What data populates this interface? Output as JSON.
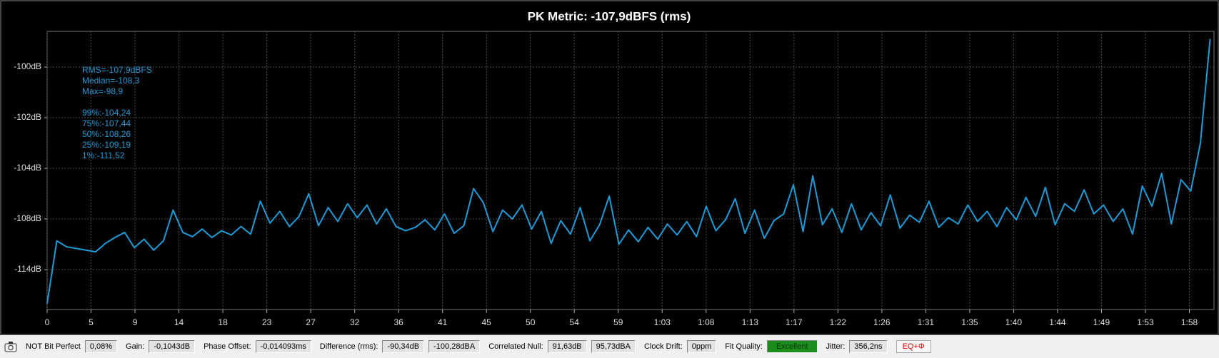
{
  "chart_data": {
    "type": "line",
    "title": "PK Metric: -107,9dBFS (rms)",
    "annotations": {
      "summary": [
        "RMS=-107,9dBFS",
        "Median=-108,3",
        "Max=-98,9"
      ],
      "percentiles": [
        "99%:-104,24",
        "75%:-107,44",
        "50%:-108,26",
        "25%:-109,19",
        "1%:-111,52"
      ]
    },
    "x": [
      0,
      1,
      2,
      3,
      4,
      5,
      6,
      7,
      8,
      9,
      10,
      11,
      12,
      13,
      14,
      15,
      16,
      17,
      18,
      19,
      20,
      21,
      22,
      23,
      24,
      25,
      26,
      27,
      28,
      29,
      30,
      31,
      32,
      33,
      34,
      35,
      36,
      37,
      38,
      39,
      40,
      41,
      42,
      43,
      44,
      45,
      46,
      47,
      48,
      49,
      50,
      51,
      52,
      53,
      54,
      55,
      56,
      57,
      58,
      59,
      60,
      61,
      62,
      63,
      64,
      65,
      66,
      67,
      68,
      69,
      70,
      71,
      72,
      73,
      74,
      75,
      76,
      77,
      78,
      79,
      80,
      81,
      82,
      83,
      84,
      85,
      86,
      87,
      88,
      89,
      90,
      91,
      92,
      93,
      94,
      95,
      96,
      97,
      98,
      99,
      100,
      101,
      102,
      103,
      104,
      105,
      106,
      107,
      108,
      109,
      110,
      111,
      112,
      113,
      114,
      115,
      116,
      117,
      118,
      119,
      120
    ],
    "series": [
      {
        "name": "PK Metric",
        "color": "#1e9bd7",
        "values": [
          -118.0,
          -110.6,
          -111.3,
          -111.5,
          -111.7,
          -111.9,
          -110.9,
          -110.2,
          -109.6,
          -111.4,
          -110.4,
          -111.7,
          -110.6,
          -107.3,
          -109.6,
          -110.1,
          -109.2,
          -110.2,
          -109.4,
          -109.9,
          -108.9,
          -109.8,
          -106.6,
          -108.5,
          -107.4,
          -108.9,
          -107.8,
          -106.0,
          -108.8,
          -107.1,
          -108.3,
          -106.8,
          -107.9,
          -106.9,
          -108.6,
          -107.2,
          -108.9,
          -109.4,
          -109.0,
          -108.1,
          -109.3,
          -107.6,
          -109.7,
          -108.8,
          -105.6,
          -106.7,
          -109.5,
          -107.3,
          -108.0,
          -106.9,
          -109.2,
          -107.4,
          -110.9,
          -108.2,
          -109.8,
          -107.1,
          -110.6,
          -108.7,
          -106.2,
          -111.0,
          -109.3,
          -110.7,
          -109.0,
          -110.4,
          -108.6,
          -109.9,
          -108.3,
          -110.1,
          -107.0,
          -109.4,
          -108.1,
          -106.4,
          -109.7,
          -107.3,
          -110.3,
          -108.2,
          -107.6,
          -105.3,
          -109.5,
          -104.6,
          -108.7,
          -107.2,
          -109.6,
          -106.8,
          -109.3,
          -107.5,
          -108.8,
          -106.1,
          -109.1,
          -107.7,
          -108.4,
          -106.6,
          -109.0,
          -107.9,
          -108.6,
          -106.9,
          -108.3,
          -107.4,
          -108.9,
          -107.1,
          -108.1,
          -106.3,
          -107.8,
          -105.5,
          -108.7,
          -106.8,
          -107.4,
          -105.7,
          -107.6,
          -106.9,
          -108.3,
          -107.2,
          -109.8,
          -105.4,
          -107.0,
          -104.4,
          -108.6,
          -104.9,
          -105.8,
          -103.0,
          -98.9
        ]
      }
    ],
    "xlim": [
      0,
      120.4
    ],
    "xticks": [
      {
        "value": 0,
        "label": "0"
      },
      {
        "value": 4.533,
        "label": "5"
      },
      {
        "value": 9.066,
        "label": "9"
      },
      {
        "value": 13.599,
        "label": "14"
      },
      {
        "value": 18.132,
        "label": "18"
      },
      {
        "value": 22.665,
        "label": "23"
      },
      {
        "value": 27.198,
        "label": "27"
      },
      {
        "value": 31.731,
        "label": "32"
      },
      {
        "value": 36.264,
        "label": "36"
      },
      {
        "value": 40.797,
        "label": "41"
      },
      {
        "value": 45.33,
        "label": "45"
      },
      {
        "value": 49.863,
        "label": "50"
      },
      {
        "value": 54.396,
        "label": "54"
      },
      {
        "value": 58.929,
        "label": "59"
      },
      {
        "value": 63.462,
        "label": "1:03"
      },
      {
        "value": 67.995,
        "label": "1:08"
      },
      {
        "value": 72.528,
        "label": "1:13"
      },
      {
        "value": 77.061,
        "label": "1:17"
      },
      {
        "value": 81.594,
        "label": "1:22"
      },
      {
        "value": 86.127,
        "label": "1:26"
      },
      {
        "value": 90.66,
        "label": "1:31"
      },
      {
        "value": 95.193,
        "label": "1:35"
      },
      {
        "value": 99.726,
        "label": "1:40"
      },
      {
        "value": 104.259,
        "label": "1:44"
      },
      {
        "value": 108.792,
        "label": "1:49"
      },
      {
        "value": 113.325,
        "label": "1:53"
      },
      {
        "value": 117.858,
        "label": "1:58"
      }
    ],
    "ylim": [
      -118.7,
      -98.6
    ],
    "yticks": [
      {
        "value": -100,
        "label": "-100dB"
      },
      {
        "value": -102,
        "label": "-102dB"
      },
      {
        "value": -104,
        "label": "-104dB"
      },
      {
        "value": -108,
        "label": "-108dB"
      },
      {
        "value": -114,
        "label": "-114dB"
      }
    ],
    "grid": true
  },
  "status_bar": {
    "bit_perfect": {
      "label": "NOT Bit Perfect",
      "value": "0,08%"
    },
    "gain": {
      "label": "Gain:",
      "value": "-0,1043dB"
    },
    "phase_offset": {
      "label": "Phase Offset:",
      "value": "-0,014093ms"
    },
    "difference": {
      "label": "Difference (rms):",
      "values": [
        "-90,34dB",
        "-100,28dBA"
      ]
    },
    "correlated_null": {
      "label": "Correlated Null:",
      "values": [
        "91,63dB",
        "95,73dBA"
      ]
    },
    "clock_drift": {
      "label": "Clock Drift:",
      "value": "0ppm"
    },
    "fit_quality": {
      "label": "Fit Quality:",
      "value": "Excellent"
    },
    "jitter": {
      "label": "Jitter:",
      "value": "356,2ns"
    },
    "eq_button": "EQ+Φ"
  }
}
